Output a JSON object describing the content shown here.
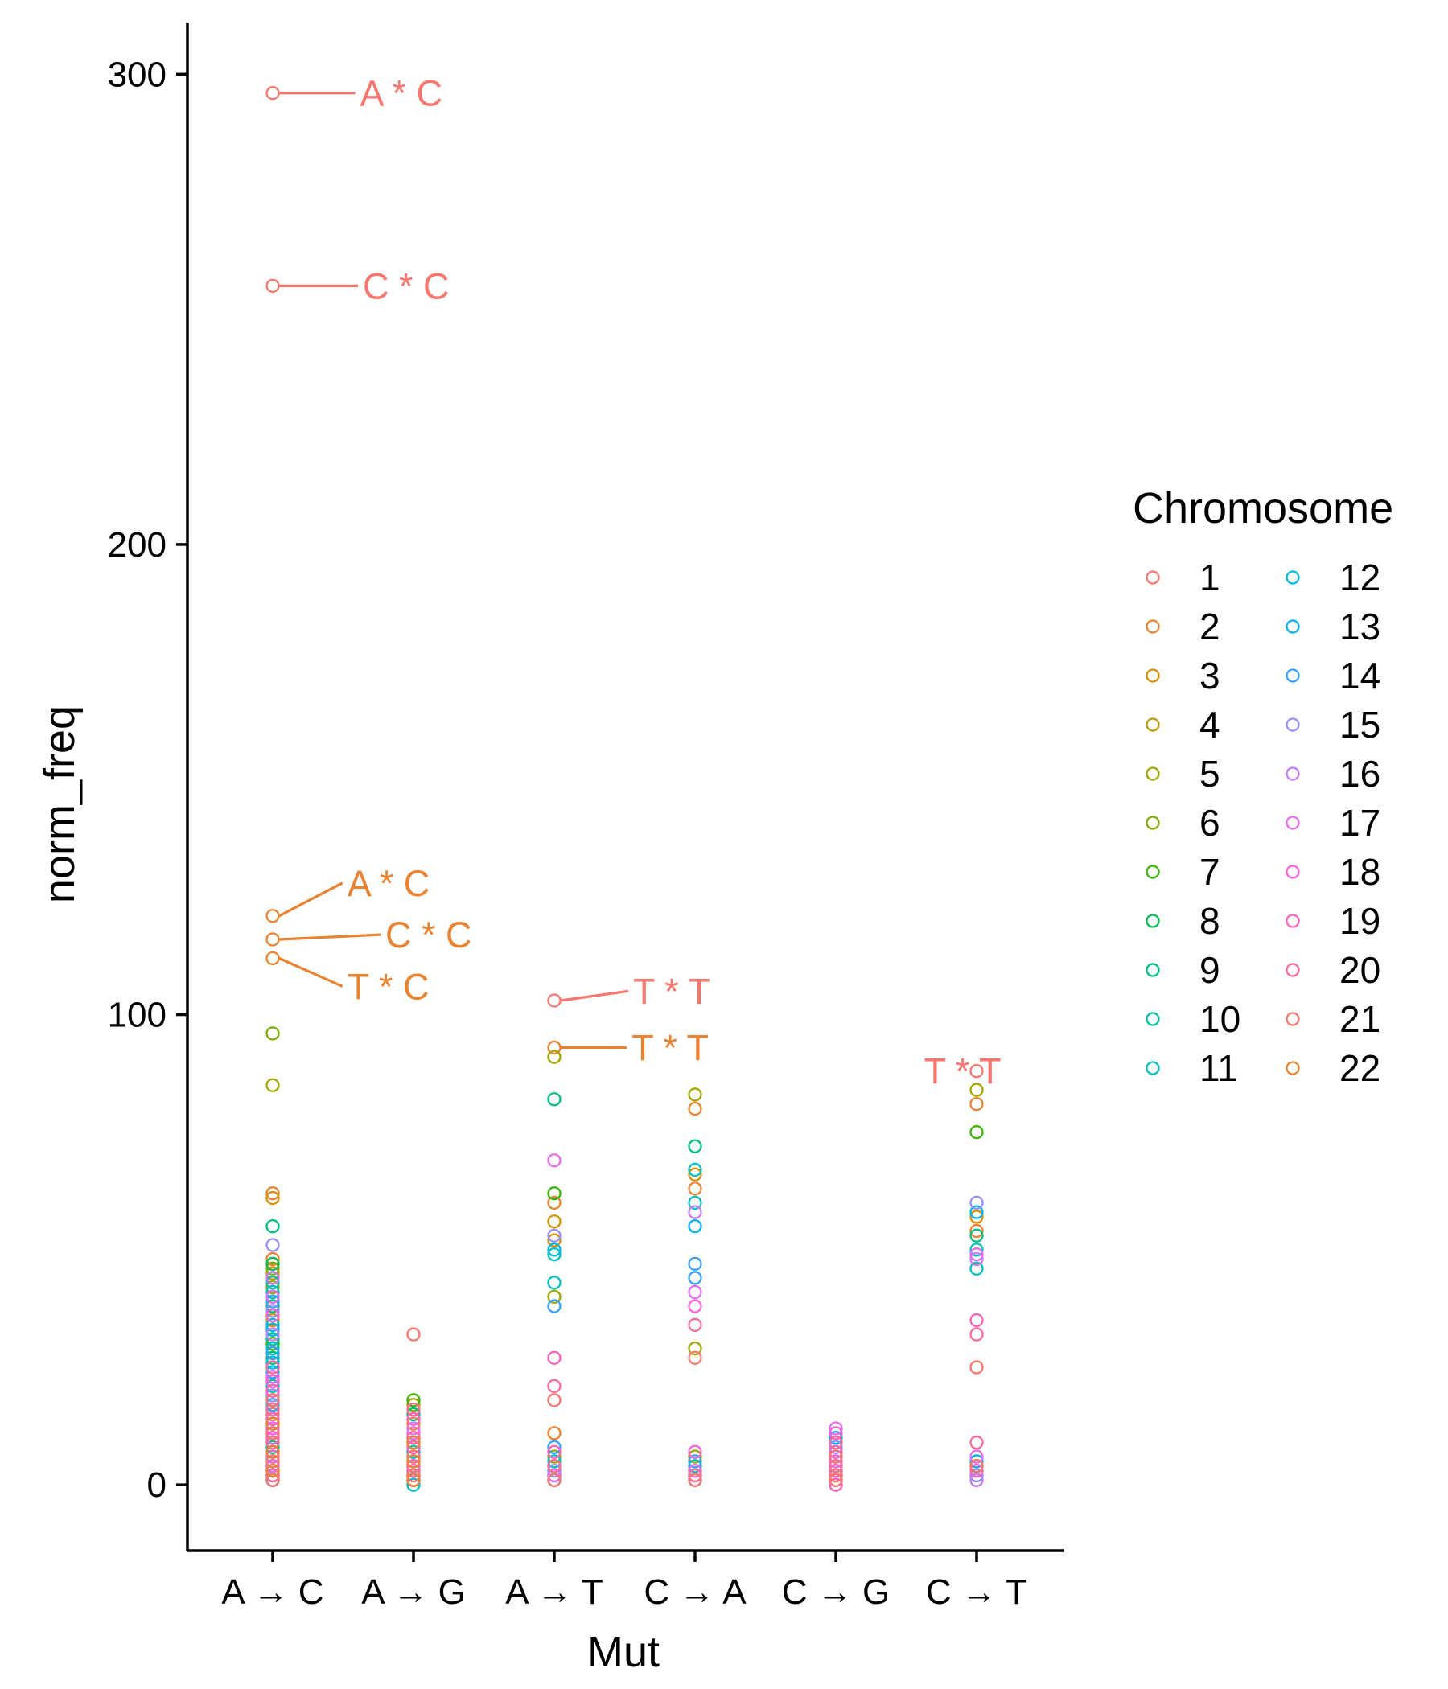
{
  "chart_data": {
    "type": "scatter",
    "xlabel": "Mut",
    "ylabel": "norm_freq",
    "ylim": [
      -14,
      311
    ],
    "yticks": [
      0,
      100,
      200,
      300
    ],
    "categories": [
      "A → C",
      "A → G",
      "A → T",
      "C → A",
      "C → G",
      "C → T"
    ],
    "legend": {
      "title": "Chromosome",
      "placement": "right",
      "entries": [
        "1",
        "2",
        "3",
        "4",
        "5",
        "6",
        "7",
        "8",
        "9",
        "10",
        "11",
        "12",
        "13",
        "14",
        "15",
        "16",
        "17",
        "18",
        "19",
        "20",
        "21",
        "22"
      ]
    },
    "colors": {
      "1": "#F8766D",
      "2": "#EA8331",
      "3": "#D89000",
      "4": "#C09B00",
      "5": "#A3A500",
      "6": "#7CAE00",
      "7": "#39B600",
      "8": "#00BB4E",
      "9": "#00BF7D",
      "10": "#00C1A3",
      "11": "#00BFC4",
      "12": "#00BAE0",
      "13": "#00B0F6",
      "14": "#35A2FF",
      "15": "#9590FF",
      "16": "#C77CFF",
      "17": "#E76BF3",
      "18": "#FA62DB",
      "19": "#FF62BC",
      "20": "#FF6A98",
      "21": "#F8766D",
      "22": "#EA8331"
    },
    "series": [
      {
        "category": "A → C",
        "chromosome": "1",
        "values": [
          296,
          255,
          1,
          3,
          15,
          25
        ]
      },
      {
        "category": "A → C",
        "chromosome": "2",
        "values": [
          121,
          116,
          112,
          62,
          48,
          2
        ]
      },
      {
        "category": "A → C",
        "chromosome": "3",
        "values": [
          61,
          45,
          35,
          20,
          4
        ]
      },
      {
        "category": "A → C",
        "chromosome": "4",
        "values": [
          40,
          30,
          22,
          12,
          3
        ]
      },
      {
        "category": "A → C",
        "chromosome": "5",
        "values": [
          85,
          42,
          28,
          5
        ]
      },
      {
        "category": "A → C",
        "chromosome": "6",
        "values": [
          96,
          46,
          33,
          10,
          2
        ]
      },
      {
        "category": "A → C",
        "chromosome": "7",
        "values": [
          44,
          30,
          18,
          1
        ]
      },
      {
        "category": "A → C",
        "chromosome": "8",
        "values": [
          47,
          36,
          14,
          6
        ]
      },
      {
        "category": "A → C",
        "chromosome": "9",
        "values": [
          55,
          38,
          27,
          8,
          1
        ]
      },
      {
        "category": "A → C",
        "chromosome": "10",
        "values": [
          43,
          31,
          16,
          2
        ]
      },
      {
        "category": "A → C",
        "chromosome": "11",
        "values": [
          41,
          29,
          21,
          4
        ]
      },
      {
        "category": "A → C",
        "chromosome": "12",
        "values": [
          33,
          26,
          9,
          1
        ]
      },
      {
        "category": "A → C",
        "chromosome": "13",
        "values": [
          34,
          24,
          13,
          3
        ]
      },
      {
        "category": "A → C",
        "chromosome": "14",
        "values": [
          39,
          28,
          17,
          5
        ]
      },
      {
        "category": "A → C",
        "chromosome": "15",
        "values": [
          51,
          37,
          19,
          2
        ]
      },
      {
        "category": "A → C",
        "chromosome": "16",
        "values": [
          44,
          32,
          11,
          7
        ]
      },
      {
        "category": "A → C",
        "chromosome": "17",
        "values": [
          40,
          23,
          12,
          4
        ]
      },
      {
        "category": "A → C",
        "chromosome": "18",
        "values": [
          36,
          22,
          10,
          3
        ]
      },
      {
        "category": "A → C",
        "chromosome": "19",
        "values": [
          20,
          14,
          6,
          1
        ]
      },
      {
        "category": "A → C",
        "chromosome": "20",
        "values": [
          25,
          16,
          9,
          2
        ]
      },
      {
        "category": "A → C",
        "chromosome": "21",
        "values": [
          18,
          11,
          5,
          1
        ]
      },
      {
        "category": "A → C",
        "chromosome": "22",
        "values": [
          13,
          7,
          3
        ]
      },
      {
        "category": "A → G",
        "chromosome": "1",
        "values": [
          32,
          4,
          1
        ]
      },
      {
        "category": "A → G",
        "chromosome": "5",
        "values": [
          17,
          8,
          2
        ]
      },
      {
        "category": "A → G",
        "chromosome": "7",
        "values": [
          18,
          10,
          3
        ]
      },
      {
        "category": "A → G",
        "chromosome": "9",
        "values": [
          15,
          6,
          1
        ]
      },
      {
        "category": "A → G",
        "chromosome": "11",
        "values": [
          7,
          2,
          0
        ]
      },
      {
        "category": "A → G",
        "chromosome": "13",
        "values": [
          9,
          4,
          1
        ]
      },
      {
        "category": "A → G",
        "chromosome": "16",
        "values": [
          12,
          6,
          2
        ]
      },
      {
        "category": "A → G",
        "chromosome": "17",
        "values": [
          11,
          5,
          1
        ]
      },
      {
        "category": "A → G",
        "chromosome": "19",
        "values": [
          14,
          8,
          3
        ]
      },
      {
        "category": "A → G",
        "chromosome": "20",
        "values": [
          16,
          10,
          4
        ]
      },
      {
        "category": "A → G",
        "chromosome": "21",
        "values": [
          13,
          6,
          2
        ]
      },
      {
        "category": "A → G",
        "chromosome": "22",
        "values": [
          9,
          5,
          1
        ]
      },
      {
        "category": "A → T",
        "chromosome": "1",
        "values": [
          103,
          2,
          1
        ]
      },
      {
        "category": "A → T",
        "chromosome": "2",
        "values": [
          93,
          60,
          11
        ]
      },
      {
        "category": "A → T",
        "chromosome": "3",
        "values": [
          56,
          52,
          4
        ]
      },
      {
        "category": "A → T",
        "chromosome": "5",
        "values": [
          91,
          40,
          6
        ]
      },
      {
        "category": "A → T",
        "chromosome": "7",
        "values": [
          62,
          3
        ]
      },
      {
        "category": "A → T",
        "chromosome": "9",
        "values": [
          82,
          2
        ]
      },
      {
        "category": "A → T",
        "chromosome": "11",
        "values": [
          49,
          43,
          5
        ]
      },
      {
        "category": "A → T",
        "chromosome": "12",
        "values": [
          50,
          1
        ]
      },
      {
        "category": "A → T",
        "chromosome": "14",
        "values": [
          38,
          8
        ]
      },
      {
        "category": "A → T",
        "chromosome": "15",
        "values": [
          53,
          3
        ]
      },
      {
        "category": "A → T",
        "chromosome": "17",
        "values": [
          69,
          2
        ]
      },
      {
        "category": "A → T",
        "chromosome": "19",
        "values": [
          27,
          7
        ]
      },
      {
        "category": "A → T",
        "chromosome": "20",
        "values": [
          21,
          4
        ]
      },
      {
        "category": "A → T",
        "chromosome": "21",
        "values": [
          18,
          1
        ]
      },
      {
        "category": "C → A",
        "chromosome": "2",
        "values": [
          80,
          63,
          1
        ]
      },
      {
        "category": "C → A",
        "chromosome": "3",
        "values": [
          66,
          3
        ]
      },
      {
        "category": "C → A",
        "chromosome": "5",
        "values": [
          83,
          29,
          6
        ]
      },
      {
        "category": "C → A",
        "chromosome": "9",
        "values": [
          72,
          2
        ]
      },
      {
        "category": "C → A",
        "chromosome": "11",
        "values": [
          67,
          60,
          4
        ]
      },
      {
        "category": "C → A",
        "chromosome": "13",
        "values": [
          55,
          1
        ]
      },
      {
        "category": "C → A",
        "chromosome": "14",
        "values": [
          47,
          44,
          5
        ]
      },
      {
        "category": "C → A",
        "chromosome": "16",
        "values": [
          58,
          2
        ]
      },
      {
        "category": "C → A",
        "chromosome": "17",
        "values": [
          41,
          3
        ]
      },
      {
        "category": "C → A",
        "chromosome": "18",
        "values": [
          38,
          7
        ]
      },
      {
        "category": "C → A",
        "chromosome": "20",
        "values": [
          34,
          2
        ]
      },
      {
        "category": "C → A",
        "chromosome": "21",
        "values": [
          27,
          1
        ]
      },
      {
        "category": "C → G",
        "chromosome": "13",
        "values": [
          10,
          4,
          1
        ]
      },
      {
        "category": "C → G",
        "chromosome": "15",
        "values": [
          8,
          3,
          0
        ]
      },
      {
        "category": "C → G",
        "chromosome": "17",
        "values": [
          12,
          6,
          2
        ]
      },
      {
        "category": "C → G",
        "chromosome": "18",
        "values": [
          11,
          5,
          1
        ]
      },
      {
        "category": "C → G",
        "chromosome": "19",
        "values": [
          7,
          3,
          0
        ]
      },
      {
        "category": "C → G",
        "chromosome": "20",
        "values": [
          9,
          4,
          2
        ]
      },
      {
        "category": "C → G",
        "chromosome": "21",
        "values": [
          6,
          2,
          1
        ]
      },
      {
        "category": "C → T",
        "chromosome": "1",
        "values": [
          88
        ]
      },
      {
        "category": "C → T",
        "chromosome": "2",
        "values": [
          81,
          54
        ]
      },
      {
        "category": "C → T",
        "chromosome": "3",
        "values": [
          57,
          2
        ]
      },
      {
        "category": "C → T",
        "chromosome": "5",
        "values": [
          84,
          4
        ]
      },
      {
        "category": "C → T",
        "chromosome": "7",
        "values": [
          75,
          1
        ]
      },
      {
        "category": "C → T",
        "chromosome": "9",
        "values": [
          53,
          3
        ]
      },
      {
        "category": "C → T",
        "chromosome": "11",
        "values": [
          50,
          46
        ]
      },
      {
        "category": "C → T",
        "chromosome": "13",
        "values": [
          58,
          5
        ]
      },
      {
        "category": "C → T",
        "chromosome": "15",
        "values": [
          60,
          2
        ]
      },
      {
        "category": "C → T",
        "chromosome": "16",
        "values": [
          48,
          1
        ]
      },
      {
        "category": "C → T",
        "chromosome": "17",
        "values": [
          49,
          6
        ]
      },
      {
        "category": "C → T",
        "chromosome": "19",
        "values": [
          35,
          3
        ]
      },
      {
        "category": "C → T",
        "chromosome": "20",
        "values": [
          32,
          9
        ]
      },
      {
        "category": "C → T",
        "chromosome": "21",
        "values": [
          25,
          4
        ]
      }
    ],
    "annotations": [
      {
        "text": "A * C",
        "category": "A → C",
        "y": 296,
        "chromosome": "1",
        "label_dx": 0.62,
        "label_y": 296
      },
      {
        "text": "C * C",
        "category": "A → C",
        "y": 255,
        "chromosome": "1",
        "label_dx": 0.64,
        "label_y": 255
      },
      {
        "text": "A * C",
        "category": "A → C",
        "y": 121,
        "chromosome": "2",
        "label_dx": 0.53,
        "label_y": 128
      },
      {
        "text": "C * C",
        "category": "A → C",
        "y": 116,
        "chromosome": "2",
        "label_dx": 0.8,
        "label_y": 117
      },
      {
        "text": "T * C",
        "category": "A → C",
        "y": 112,
        "chromosome": "2",
        "label_dx": 0.53,
        "label_y": 106
      },
      {
        "text": "T * T",
        "category": "A → T",
        "y": 103,
        "chromosome": "1",
        "label_dx": 0.56,
        "label_y": 105
      },
      {
        "text": "T * T",
        "category": "A → T",
        "y": 93,
        "chromosome": "2",
        "label_dx": 0.55,
        "label_y": 93
      },
      {
        "text": "T * T",
        "category": "C → T",
        "y": 88,
        "chromosome": "1",
        "label_dx": -0.1,
        "label_y": 88
      }
    ]
  }
}
